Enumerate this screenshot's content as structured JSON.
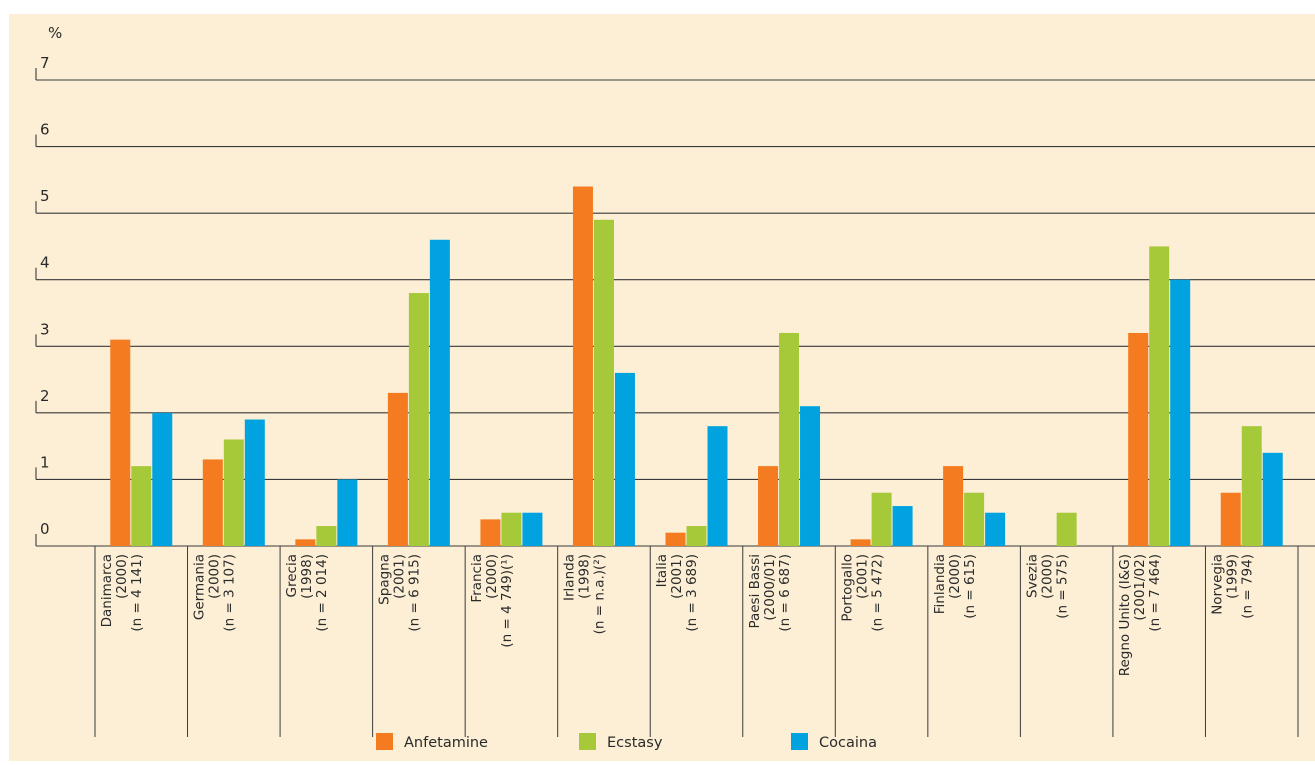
{
  "chart_data": {
    "type": "bar",
    "unit_label": "%",
    "ylim": [
      0,
      7
    ],
    "yticks": [
      0,
      1,
      2,
      3,
      4,
      5,
      6,
      7
    ],
    "grid": true,
    "legend_position": "bottom",
    "categories": [
      [
        "Danimarca",
        "(2000)",
        "(n = 4 141)"
      ],
      [
        "Germania",
        "(2000)",
        "(n = 3 107)"
      ],
      [
        "Grecia",
        "(1998)",
        "(n = 2 014)"
      ],
      [
        "Spagna",
        "(2001)",
        "(n = 6 915)"
      ],
      [
        "Francia",
        "(2000)",
        "(n = 4 749)(¹)"
      ],
      [
        "Irlanda",
        "(1998)",
        "(n = n.a.)(²)"
      ],
      [
        "Italia",
        "(2001)",
        "(n = 3 689)"
      ],
      [
        "Paesi Bassi",
        "(2000/01)",
        "(n = 6 687)"
      ],
      [
        "Portogallo",
        "(2001)",
        "(n = 5 472)"
      ],
      [
        "Finlandia",
        "(2000)",
        "(n = 615)"
      ],
      [
        "Svezia",
        "(2000)",
        "(n = 575)"
      ],
      [
        "Regno Unito (I&G)",
        "(2001/02)",
        "(n = 7 464)"
      ],
      [
        "Norvegia",
        "(1999)",
        "(n = 794)"
      ]
    ],
    "series": [
      {
        "name": "Anfetamine",
        "color": "#f47b20",
        "values": [
          3.1,
          1.3,
          0.1,
          2.3,
          0.4,
          5.4,
          0.2,
          1.2,
          0.1,
          1.2,
          null,
          3.2,
          0.8
        ]
      },
      {
        "name": "Ecstasy",
        "color": "#a6c93a",
        "values": [
          1.2,
          1.6,
          0.3,
          3.8,
          0.5,
          4.9,
          0.3,
          3.2,
          0.8,
          0.8,
          0.5,
          4.5,
          1.8
        ]
      },
      {
        "name": "Cocaina",
        "color": "#00a3e0",
        "values": [
          2.0,
          1.9,
          1.0,
          4.6,
          0.5,
          2.6,
          1.8,
          2.1,
          0.6,
          0.5,
          null,
          4.0,
          1.4
        ]
      }
    ]
  }
}
